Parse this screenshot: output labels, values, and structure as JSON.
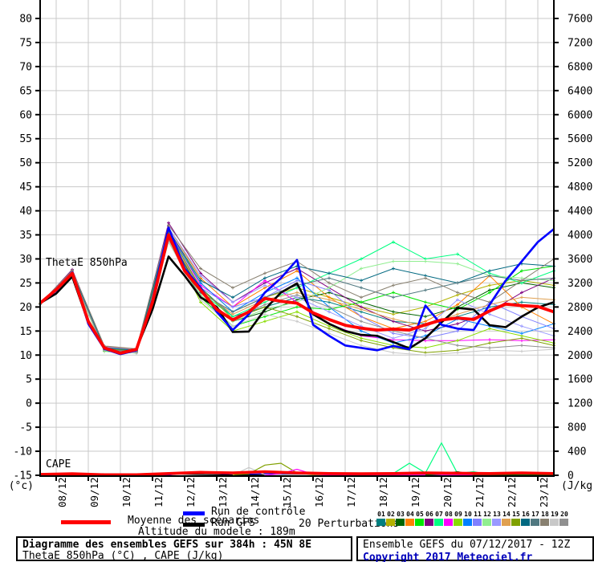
{
  "legend": {
    "mean": "Moyenne des scénarios",
    "control": "Run de contrôle",
    "gfs": "Run GFS",
    "perturbations_label": "20 Perturbations",
    "altitude": "Altitude du modele : 189m"
  },
  "footer": {
    "left_line1": "Diagramme des ensembles GEFS sur 384h : 45N 8E",
    "left_line2": "ThetaE 850hPa (°C) , CAPE (J/kg)",
    "right_line1": "Ensemble GEFS du 07/12/2017 - 12Z",
    "right_line2": "Copyright 2017 Meteociel.fr",
    "copyright_color": "#0000bb"
  },
  "chart_data": {
    "type": "line",
    "title": "Diagramme des ensembles GEFS sur 384h : 45N 8E",
    "subtitle": "ThetaE 850hPa (°C) , CAPE (J/kg)",
    "in_chart_labels": {
      "thetae": "ThetaE 850hPa",
      "cape": "CAPE"
    },
    "grid": true,
    "colors": {
      "mean": "#ff0000",
      "control": "#0000ff",
      "gfs": "#000000",
      "gridline": "#c9c9c9",
      "axis": "#000000"
    },
    "y_left": {
      "unit": "(°c)",
      "min": -15,
      "max": 80,
      "step": 5,
      "ticks": [
        80,
        75,
        70,
        65,
        60,
        55,
        50,
        45,
        40,
        35,
        30,
        25,
        20,
        15,
        10,
        5,
        0,
        -5,
        -10,
        -15
      ]
    },
    "y_right": {
      "unit": "(J/kg)",
      "min": 0,
      "max": 7600,
      "step": 400,
      "ticks": [
        7600,
        7200,
        6800,
        6400,
        6000,
        5600,
        5200,
        4800,
        4400,
        4000,
        3600,
        3200,
        2800,
        2400,
        2000,
        1600,
        1200,
        800,
        400,
        0
      ]
    },
    "x_axis": {
      "run_start": "07/12/2017 12Z",
      "total_hours": 384,
      "day_labels": [
        "08/12",
        "09/12",
        "10/12",
        "11/12",
        "12/12",
        "13/12",
        "14/12",
        "15/12",
        "16/12",
        "17/12",
        "18/12",
        "19/12",
        "20/12",
        "21/12",
        "22/12",
        "23/12"
      ]
    },
    "thetae_series": {
      "mean": {
        "step_h": 12,
        "values": [
          20.8,
          23.6,
          27.0,
          17.0,
          11.5,
          10.4,
          11.2,
          21.0,
          35.0,
          27.5,
          23.5,
          19.5,
          17.3,
          19.0,
          21.8,
          21.2,
          20.8,
          18.8,
          17.4,
          16.2,
          15.6,
          15.2,
          15.4,
          15.2,
          16.3,
          17.3,
          17.7,
          17.4,
          19.2,
          20.6,
          20.3,
          20.1,
          19.0
        ]
      },
      "control": {
        "step_h": 12,
        "values": [
          20.8,
          23.4,
          27.2,
          16.5,
          11.3,
          10.2,
          11.0,
          21.5,
          36.5,
          28.0,
          24.0,
          19.0,
          15.2,
          18.5,
          23.0,
          26.0,
          29.8,
          16.3,
          14.0,
          12.0,
          11.5,
          11.0,
          11.9,
          11.2,
          20.3,
          16.3,
          15.5,
          15.2,
          20.5,
          25.5,
          29.5,
          33.5,
          36.2
        ]
      },
      "gfs": {
        "step_h": 12,
        "values": [
          20.8,
          22.8,
          26.3,
          16.8,
          11.6,
          10.5,
          11.3,
          19.5,
          30.5,
          26.5,
          22.0,
          20.0,
          14.8,
          14.9,
          19.5,
          23.0,
          24.9,
          18.5,
          16.5,
          15.0,
          14.2,
          14.0,
          12.7,
          11.4,
          13.5,
          16.8,
          19.8,
          19.5,
          16.2,
          15.8,
          18.0,
          19.9,
          21.0
        ]
      },
      "perturbations": [
        {
          "id": "01",
          "color": "#008080",
          "step_h": 24,
          "values": [
            20.5,
            26.8,
            11.2,
            10.8,
            34.5,
            24.0,
            18.0,
            20.0,
            22.0,
            21.0,
            19.0,
            17.0,
            16.5,
            18.0,
            20.0,
            21.0,
            20.5
          ]
        },
        {
          "id": "02",
          "color": "#b2b200",
          "step_h": 24,
          "values": [
            20.8,
            27.2,
            11.5,
            11.0,
            36.0,
            25.0,
            19.0,
            22.0,
            24.0,
            22.0,
            20.0,
            18.5,
            20.0,
            22.5,
            24.5,
            25.5,
            24.5
          ]
        },
        {
          "id": "03",
          "color": "#006400",
          "step_h": 24,
          "values": [
            20.6,
            27.0,
            11.0,
            10.5,
            35.0,
            23.0,
            17.0,
            19.0,
            21.5,
            23.0,
            21.0,
            19.0,
            18.0,
            20.0,
            23.5,
            25.0,
            24.0
          ]
        },
        {
          "id": "04",
          "color": "#ff8000",
          "step_h": 24,
          "values": [
            20.7,
            27.5,
            11.8,
            11.2,
            36.5,
            26.0,
            20.0,
            24.0,
            27.5,
            22.0,
            18.0,
            15.5,
            17.0,
            20.5,
            26.5,
            20.0,
            16.5
          ]
        },
        {
          "id": "05",
          "color": "#00e600",
          "step_h": 24,
          "values": [
            20.5,
            26.5,
            10.8,
            10.4,
            33.5,
            22.0,
            16.0,
            18.0,
            20.0,
            19.5,
            21.0,
            23.0,
            21.0,
            19.5,
            23.0,
            27.5,
            28.5
          ]
        },
        {
          "id": "06",
          "color": "#800080",
          "step_h": 24,
          "values": [
            20.6,
            27.8,
            11.4,
            10.9,
            37.5,
            27.0,
            21.0,
            25.0,
            28.0,
            24.0,
            20.0,
            17.0,
            15.0,
            16.5,
            19.0,
            23.0,
            26.0
          ]
        },
        {
          "id": "07",
          "color": "#00ff80",
          "step_h": 24,
          "values": [
            20.5,
            27.0,
            11.0,
            10.6,
            34.0,
            23.0,
            18.0,
            21.0,
            24.0,
            27.0,
            30.0,
            33.5,
            30.0,
            31.0,
            27.0,
            25.0,
            27.5
          ]
        },
        {
          "id": "08",
          "color": "#ff00ff",
          "step_h": 24,
          "values": [
            20.7,
            27.3,
            11.6,
            11.0,
            36.0,
            24.5,
            20.0,
            25.5,
            21.0,
            16.5,
            14.0,
            13.2,
            13.0,
            13.0,
            13.2,
            13.0,
            13.2
          ]
        },
        {
          "id": "09",
          "color": "#88dd00",
          "step_h": 24,
          "values": [
            20.5,
            26.6,
            10.9,
            10.5,
            34.5,
            21.0,
            15.0,
            17.0,
            19.0,
            16.0,
            13.5,
            12.0,
            11.5,
            13.0,
            15.5,
            14.0,
            12.5
          ]
        },
        {
          "id": "10",
          "color": "#0080ff",
          "step_h": 24,
          "values": [
            20.6,
            27.1,
            11.3,
            10.7,
            35.5,
            25.0,
            19.0,
            23.0,
            26.0,
            20.0,
            15.0,
            12.5,
            14.0,
            17.5,
            16.0,
            14.5,
            16.5
          ]
        },
        {
          "id": "11",
          "color": "#8080ff",
          "step_h": 24,
          "values": [
            20.5,
            26.9,
            11.1,
            10.6,
            35.0,
            24.0,
            20.0,
            22.0,
            25.5,
            23.5,
            18.0,
            14.5,
            13.5,
            15.0,
            21.0,
            18.0,
            15.5
          ]
        },
        {
          "id": "12",
          "color": "#90ee90",
          "step_h": 24,
          "values": [
            20.6,
            26.7,
            11.0,
            10.5,
            34.0,
            22.5,
            17.0,
            19.5,
            21.0,
            24.0,
            28.0,
            29.5,
            29.5,
            29.0,
            26.5,
            26.0,
            25.5
          ]
        },
        {
          "id": "13",
          "color": "#9999ff",
          "step_h": 24,
          "values": [
            20.7,
            27.4,
            11.7,
            11.1,
            36.5,
            26.5,
            21.0,
            24.5,
            22.0,
            19.0,
            16.0,
            13.5,
            15.5,
            21.5,
            18.5,
            16.0,
            14.0
          ]
        },
        {
          "id": "14",
          "color": "#e0a050",
          "step_h": 24,
          "values": [
            20.5,
            26.8,
            11.2,
            10.8,
            35.0,
            23.5,
            18.5,
            21.5,
            23.0,
            21.5,
            19.5,
            17.5,
            16.0,
            18.5,
            20.5,
            22.0,
            21.5
          ]
        },
        {
          "id": "15",
          "color": "#80a000",
          "step_h": 24,
          "values": [
            20.6,
            27.0,
            11.4,
            10.9,
            35.5,
            24.0,
            17.5,
            20.0,
            18.0,
            15.5,
            13.0,
            11.5,
            10.5,
            11.0,
            12.5,
            13.5,
            12.0
          ]
        },
        {
          "id": "16",
          "color": "#006880",
          "step_h": 24,
          "values": [
            20.5,
            27.2,
            11.5,
            11.0,
            36.0,
            25.5,
            22.0,
            26.0,
            28.5,
            27.0,
            25.5,
            28.0,
            26.5,
            25.0,
            27.5,
            29.0,
            28.5
          ]
        },
        {
          "id": "17",
          "color": "#507880",
          "step_h": 24,
          "values": [
            20.6,
            26.9,
            11.2,
            10.7,
            34.5,
            23.0,
            19.0,
            22.0,
            24.5,
            26.0,
            24.0,
            22.0,
            23.5,
            25.0,
            26.5,
            25.5,
            26.0
          ]
        },
        {
          "id": "18",
          "color": "#888070",
          "step_h": 24,
          "values": [
            20.7,
            27.6,
            11.9,
            11.3,
            37.0,
            28.0,
            24.0,
            27.0,
            29.5,
            25.0,
            22.0,
            24.5,
            26.0,
            23.0,
            21.0,
            25.5,
            30.0
          ]
        },
        {
          "id": "19",
          "color": "#c8c8c8",
          "step_h": 24,
          "values": [
            20.5,
            26.6,
            10.9,
            10.4,
            33.5,
            21.5,
            16.0,
            18.5,
            17.0,
            14.5,
            12.0,
            10.5,
            10.0,
            10.5,
            11.0,
            10.8,
            11.2
          ]
        },
        {
          "id": "20",
          "color": "#909090",
          "step_h": 24,
          "values": [
            20.6,
            26.8,
            11.1,
            10.6,
            34.0,
            22.0,
            17.5,
            20.5,
            22.5,
            20.0,
            17.0,
            15.0,
            13.5,
            12.0,
            11.5,
            12.0,
            11.5
          ]
        }
      ]
    },
    "cape_series": {
      "mean": {
        "color": "#ff0000",
        "step_h": 24,
        "values": [
          15,
          25,
          10,
          10,
          30,
          50,
          40,
          60,
          40,
          30,
          25,
          30,
          40,
          35,
          30,
          40,
          30
        ]
      },
      "extra": [
        {
          "id": "control",
          "color": "#0000ff",
          "points": [
            [
              0,
              5
            ],
            [
              96,
              5
            ],
            [
              108,
              40
            ],
            [
              120,
              55
            ],
            [
              132,
              30
            ],
            [
              144,
              5
            ],
            [
              168,
              30
            ],
            [
              192,
              20
            ],
            [
              216,
              10
            ],
            [
              240,
              5
            ],
            [
              288,
              20
            ],
            [
              312,
              10
            ],
            [
              384,
              5
            ]
          ]
        },
        {
          "id": "gfs",
          "color": "#000000",
          "points": [
            [
              0,
              8
            ],
            [
              24,
              20
            ],
            [
              48,
              10
            ],
            [
              72,
              15
            ],
            [
              96,
              25
            ],
            [
              120,
              15
            ],
            [
              144,
              5
            ],
            [
              192,
              10
            ],
            [
              240,
              5
            ],
            [
              300,
              8
            ],
            [
              384,
              5
            ]
          ]
        },
        {
          "id": "07",
          "color": "#00ff80",
          "points": [
            [
              252,
              0
            ],
            [
              264,
              30
            ],
            [
              276,
              200
            ],
            [
              288,
              40
            ],
            [
              300,
              540
            ],
            [
              312,
              30
            ],
            [
              324,
              60
            ],
            [
              336,
              10
            ],
            [
              384,
              5
            ]
          ]
        },
        {
          "id": "19",
          "color": "#c8c8c8",
          "points": [
            [
              144,
              0
            ],
            [
              156,
              130
            ],
            [
              168,
              10
            ],
            [
              384,
              0
            ]
          ]
        },
        {
          "id": "15",
          "color": "#80a000",
          "points": [
            [
              144,
              10
            ],
            [
              156,
              25
            ],
            [
              168,
              170
            ],
            [
              180,
              200
            ],
            [
              192,
              40
            ],
            [
              204,
              10
            ],
            [
              384,
              5
            ]
          ]
        },
        {
          "id": "08",
          "color": "#ff00ff",
          "points": [
            [
              168,
              0
            ],
            [
              180,
              30
            ],
            [
              192,
              100
            ],
            [
              204,
              20
            ],
            [
              216,
              5
            ],
            [
              384,
              3
            ]
          ]
        },
        {
          "id": "03",
          "color": "#006400",
          "points": [
            [
              288,
              5
            ],
            [
              300,
              20
            ],
            [
              312,
              60
            ],
            [
              324,
              10
            ],
            [
              384,
              5
            ]
          ]
        }
      ]
    }
  }
}
